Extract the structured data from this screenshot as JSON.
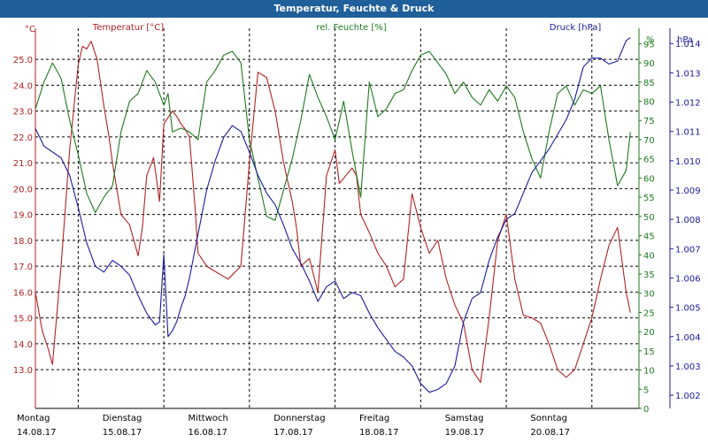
{
  "window": {
    "title": "Temperatur, Feuchte & Druck"
  },
  "chart_data": {
    "type": "line",
    "title": "Temperatur, Feuchte & Druck",
    "colors": {
      "temperature": "#b22222",
      "humidity": "#1e7a1e",
      "pressure": "#1a1aa0",
      "grid": "#000000"
    },
    "days": [
      {
        "name": "Montag",
        "date": "14.08.17"
      },
      {
        "name": "Dienstag",
        "date": "15.08.17"
      },
      {
        "name": "Mittwoch",
        "date": "16.08.17"
      },
      {
        "name": "Donnerstag",
        "date": "17.08.17"
      },
      {
        "name": "Freitag",
        "date": "18.08.17"
      },
      {
        "name": "Samstag",
        "date": "19.08.17"
      },
      {
        "name": "Sonntag",
        "date": "20.08.17"
      }
    ],
    "xlim": [
      0,
      7.05
    ],
    "axes": {
      "temperature": {
        "label": "Temperatur [°C]",
        "unit": "°C",
        "ylim": [
          11.5,
          26.2
        ],
        "ticks": [
          "13.0",
          "14.0",
          "15.0",
          "16.0",
          "17.0",
          "18.0",
          "19.0",
          "20.0",
          "21.0",
          "22.0",
          "23.0",
          "24.0",
          "25.0"
        ]
      },
      "humidity": {
        "label": "rel. Feuchte [%]",
        "unit": "%",
        "ylim": [
          0,
          99
        ],
        "ticks": [
          "0",
          "5",
          "10",
          "15",
          "20",
          "25",
          "30",
          "35",
          "40",
          "45",
          "50",
          "55",
          "60",
          "65",
          "70",
          "75",
          "80",
          "85",
          "90",
          "95"
        ]
      },
      "pressure": {
        "label": "Druck [hPa]",
        "unit": "hPa",
        "ylim": [
          1.00155,
          1.01452
        ],
        "ticks": [
          "1.002",
          "1.003",
          "1.004",
          "1.005",
          "1.006",
          "1.007",
          "1.008",
          "1.009",
          "1.010",
          "1.011",
          "1.012",
          "1.013",
          "1.014"
        ]
      }
    },
    "series": [
      {
        "name": "Temperatur",
        "axis": "temperature",
        "x": [
          0,
          0.08,
          0.15,
          0.2,
          0.3,
          0.4,
          0.5,
          0.55,
          0.6,
          0.65,
          0.72,
          0.8,
          0.86,
          0.9,
          1.0,
          1.1,
          1.2,
          1.25,
          1.3,
          1.38,
          1.45,
          1.5,
          1.6,
          1.65,
          1.7,
          1.75,
          1.8,
          1.86,
          1.9,
          2.0,
          2.1,
          2.25,
          2.4,
          2.5,
          2.55,
          2.6,
          2.7,
          2.8,
          2.9,
          3.0,
          3.05,
          3.1,
          3.2,
          3.3,
          3.4,
          3.5,
          3.55,
          3.6,
          3.7,
          3.75,
          3.8,
          3.9,
          4.0,
          4.1,
          4.2,
          4.3,
          4.4,
          4.5,
          4.6,
          4.7,
          4.8,
          4.9,
          5.0,
          5.1,
          5.2,
          5.3,
          5.4,
          5.5,
          5.6,
          5.7,
          5.8,
          5.9,
          6.0,
          6.1,
          6.2,
          6.3,
          6.4,
          6.5,
          6.6,
          6.7,
          6.8,
          6.9,
          6.95
        ],
        "values": [
          16.0,
          14.5,
          13.8,
          13.2,
          17.0,
          21.5,
          24.8,
          25.5,
          25.4,
          25.7,
          25.0,
          23.2,
          22.0,
          21.0,
          19.0,
          18.6,
          17.4,
          18.5,
          20.5,
          21.2,
          19.5,
          22.5,
          23.0,
          22.8,
          22.5,
          22.3,
          22.0,
          19.5,
          17.5,
          17.0,
          16.8,
          16.5,
          17.0,
          21.0,
          22.8,
          24.5,
          24.3,
          23.0,
          21.0,
          19.5,
          18.5,
          17.0,
          17.3,
          16.0,
          20.5,
          21.5,
          20.2,
          20.4,
          20.8,
          20.5,
          19.0,
          18.3,
          17.5,
          17.0,
          16.2,
          16.5,
          19.8,
          18.5,
          17.5,
          18.0,
          16.5,
          15.5,
          14.8,
          13.0,
          12.5,
          15.0,
          18.0,
          19.0,
          16.5,
          15.1,
          15.0,
          14.8,
          14.0,
          13.0,
          12.7,
          13.0,
          14.0,
          15.0,
          16.5,
          17.8,
          18.5,
          16.0,
          15.2
        ]
      },
      {
        "name": "rel. Feuchte",
        "axis": "humidity",
        "x": [
          0,
          0.1,
          0.2,
          0.3,
          0.4,
          0.5,
          0.6,
          0.7,
          0.8,
          0.9,
          1.0,
          1.1,
          1.2,
          1.3,
          1.4,
          1.5,
          1.55,
          1.6,
          1.7,
          1.8,
          1.9,
          2.0,
          2.1,
          2.2,
          2.3,
          2.4,
          2.5,
          2.6,
          2.7,
          2.8,
          3.0,
          3.1,
          3.2,
          3.3,
          3.4,
          3.5,
          3.6,
          3.7,
          3.8,
          3.9,
          4.0,
          4.1,
          4.2,
          4.3,
          4.4,
          4.5,
          4.6,
          4.7,
          4.8,
          4.9,
          5.0,
          5.1,
          5.2,
          5.3,
          5.4,
          5.5,
          5.6,
          5.7,
          5.8,
          5.9,
          6.0,
          6.1,
          6.2,
          6.3,
          6.4,
          6.5,
          6.6,
          6.7,
          6.8,
          6.9,
          6.95
        ],
        "values": [
          78,
          85,
          90,
          86,
          75,
          66,
          56,
          51,
          55,
          58,
          72,
          80,
          82,
          88,
          85,
          79,
          82,
          72,
          73,
          72,
          70,
          85,
          88,
          92,
          93,
          90,
          70,
          60,
          50,
          49,
          65,
          75,
          87,
          81,
          76,
          70,
          80,
          67,
          55,
          85,
          76,
          78,
          82,
          83,
          88,
          92,
          93,
          90,
          87,
          82,
          85,
          81,
          79,
          83,
          80,
          84,
          81,
          72,
          65,
          60,
          72,
          82,
          84,
          79,
          83,
          82,
          84,
          70,
          58,
          62,
          72
        ]
      },
      {
        "name": "Druck",
        "axis": "pressure",
        "x": [
          0,
          0.1,
          0.2,
          0.3,
          0.4,
          0.5,
          0.6,
          0.7,
          0.8,
          0.9,
          1.0,
          1.1,
          1.2,
          1.3,
          1.4,
          1.45,
          1.5,
          1.55,
          1.6,
          1.65,
          1.7,
          1.75,
          1.8,
          1.9,
          2.0,
          2.1,
          2.2,
          2.3,
          2.4,
          2.5,
          2.6,
          2.7,
          2.8,
          2.9,
          3.0,
          3.1,
          3.2,
          3.3,
          3.4,
          3.5,
          3.6,
          3.7,
          3.8,
          3.9,
          4.0,
          4.1,
          4.2,
          4.3,
          4.4,
          4.5,
          4.6,
          4.7,
          4.8,
          4.9,
          5.0,
          5.1,
          5.2,
          5.3,
          5.4,
          5.5,
          5.6,
          5.7,
          5.8,
          5.9,
          6.0,
          6.1,
          6.2,
          6.3,
          6.4,
          6.5,
          6.6,
          6.7,
          6.8,
          6.9,
          6.95
        ],
        "values": [
          1.0111,
          1.0105,
          1.0103,
          1.0101,
          1.0095,
          1.0084,
          1.0072,
          1.0064,
          1.0062,
          1.0066,
          1.0064,
          1.0061,
          1.0054,
          1.0048,
          1.0044,
          1.0045,
          1.0068,
          1.004,
          1.0042,
          1.0045,
          1.005,
          1.0054,
          1.006,
          1.0075,
          1.009,
          1.01,
          1.0108,
          1.0112,
          1.011,
          1.0103,
          1.0095,
          1.0089,
          1.0085,
          1.0078,
          1.007,
          1.0065,
          1.0059,
          1.0052,
          1.0057,
          1.0059,
          1.0053,
          1.0055,
          1.0054,
          1.0048,
          1.0043,
          1.0039,
          1.0035,
          1.0033,
          1.003,
          1.0024,
          1.0021,
          1.0022,
          1.0024,
          1.003,
          1.0045,
          1.0053,
          1.0055,
          1.0066,
          1.0074,
          1.008,
          1.0082,
          1.0089,
          1.0096,
          1.01,
          1.0104,
          1.0109,
          1.0114,
          1.0121,
          1.0132,
          1.0135,
          1.0135,
          1.0133,
          1.0134,
          1.0141,
          1.0142
        ]
      }
    ]
  }
}
